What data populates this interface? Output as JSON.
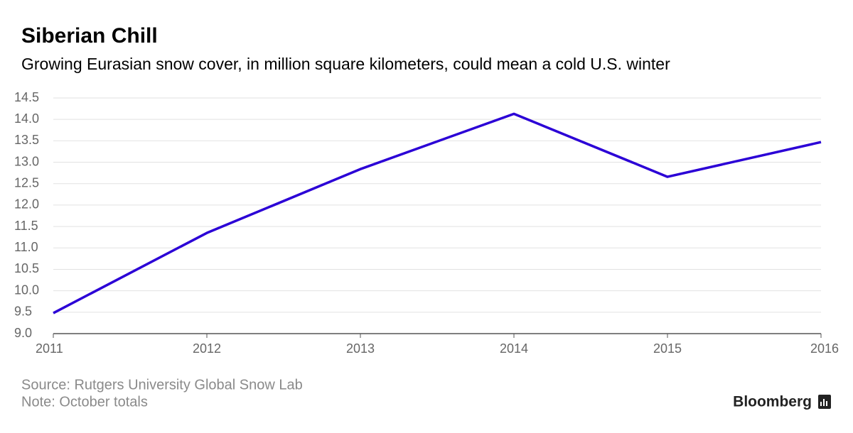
{
  "title": "Siberian Chill",
  "subtitle": "Growing Eurasian snow cover, in million square kilometers, could mean a cold U.S. winter",
  "chart_data": {
    "type": "line",
    "x": [
      2011,
      2012,
      2013,
      2014,
      2015,
      2016
    ],
    "series": [
      {
        "name": "Eurasian snow cover",
        "color": "#2b00d6",
        "values": [
          9.48,
          11.35,
          12.84,
          14.13,
          12.66,
          13.47
        ]
      }
    ],
    "xlim": [
      2011,
      2016
    ],
    "xticks": [
      2011,
      2012,
      2013,
      2014,
      2015,
      2016
    ],
    "ylim": [
      9,
      14.5
    ],
    "yticks": [
      {
        "value": 9,
        "label": "9.0"
      },
      9.5,
      {
        "value": 10,
        "label": "10.0"
      },
      10.5,
      {
        "value": 11,
        "label": "11.0"
      },
      11.5,
      {
        "value": 12,
        "label": "12.0"
      },
      12.5,
      {
        "value": 13,
        "label": "13.0"
      },
      13.5,
      {
        "value": 14,
        "label": "14.0"
      },
      14.5
    ],
    "grid": true
  },
  "footer": {
    "source": "Source: Rutgers University Global Snow Lab",
    "note": "Note: October totals",
    "brand": "Bloomberg"
  }
}
